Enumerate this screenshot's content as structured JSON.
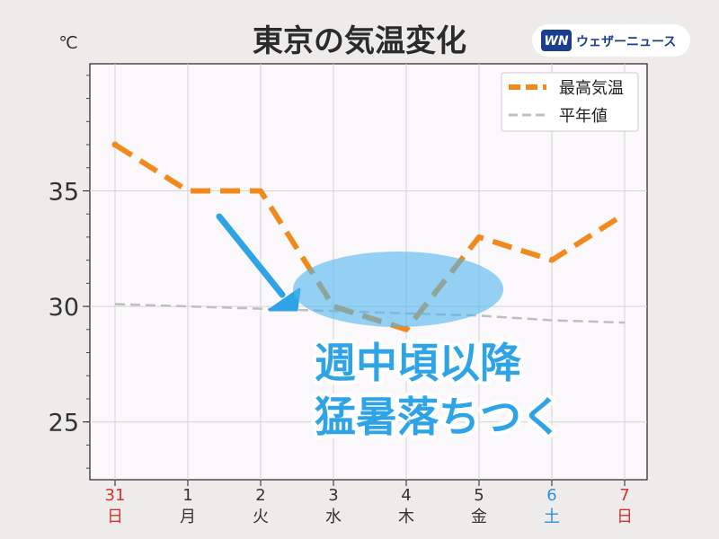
{
  "chart_data": {
    "type": "line",
    "title": "東京の気温変化",
    "unit_label": "℃",
    "x": [
      {
        "day": "31",
        "weekday": "日",
        "color": "#d9302e"
      },
      {
        "day": "1",
        "weekday": "月",
        "color": "#333333"
      },
      {
        "day": "2",
        "weekday": "火",
        "color": "#333333"
      },
      {
        "day": "3",
        "weekday": "水",
        "color": "#333333"
      },
      {
        "day": "4",
        "weekday": "木",
        "color": "#333333"
      },
      {
        "day": "5",
        "weekday": "金",
        "color": "#333333"
      },
      {
        "day": "6",
        "weekday": "土",
        "color": "#2e8fd9"
      },
      {
        "day": "7",
        "weekday": "日",
        "color": "#d9302e"
      }
    ],
    "series": [
      {
        "name": "最高気温",
        "values": [
          37,
          35,
          35,
          30,
          29,
          33,
          32,
          34
        ],
        "color": "#f08a1e",
        "style": "dashed-thick"
      },
      {
        "name": "平年値",
        "values": [
          30.1,
          30.0,
          29.9,
          29.8,
          29.7,
          29.6,
          29.4,
          29.3
        ],
        "color": "#bfbfbf",
        "style": "dashed-thin"
      }
    ],
    "ylim": [
      22.5,
      40.5
    ],
    "yticks": [
      25,
      30,
      35
    ],
    "grid": true,
    "legend_position": "top-right",
    "annotation": {
      "lines": [
        "週中頃以降",
        "猛暑落ちつく"
      ],
      "color": "#2ea3e6"
    }
  },
  "brand": {
    "name": "ウェザーニュース",
    "logo_letters": "WN",
    "logo_color": "#1a3d8f"
  }
}
